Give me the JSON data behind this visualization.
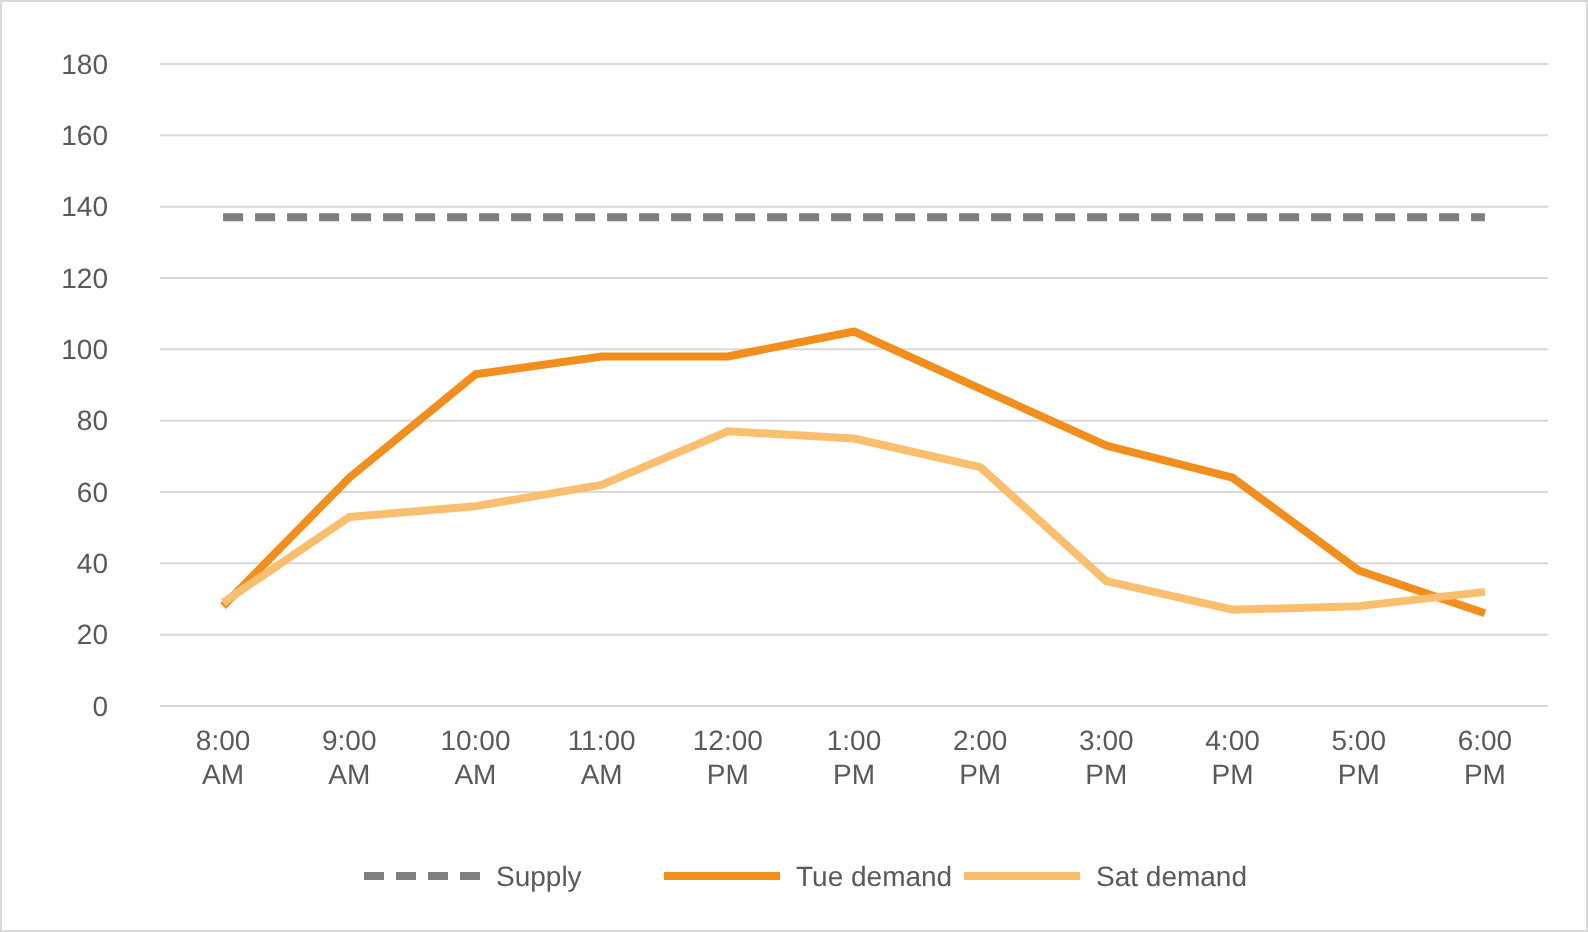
{
  "chart_data": {
    "type": "line",
    "categories": [
      "8:00 AM",
      "9:00 AM",
      "10:00 AM",
      "11:00 AM",
      "12:00 PM",
      "1:00 PM",
      "2:00 PM",
      "3:00 PM",
      "4:00 PM",
      "5:00 PM",
      "6:00 PM"
    ],
    "series": [
      {
        "name": "Supply",
        "color": "#7f7f7f",
        "line_style": "dashed",
        "values": [
          137,
          137,
          137,
          137,
          137,
          137,
          137,
          137,
          137,
          137,
          137
        ]
      },
      {
        "name": "Tue demand",
        "color": "#f28e1c",
        "line_style": "solid",
        "values": [
          28,
          64,
          93,
          98,
          98,
          105,
          89,
          73,
          64,
          38,
          26
        ]
      },
      {
        "name": "Sat demand",
        "color": "#f9bf6f",
        "line_style": "solid",
        "values": [
          29,
          53,
          56,
          62,
          77,
          75,
          67,
          35,
          27,
          28,
          32
        ]
      }
    ],
    "ylim": [
      0,
      180
    ],
    "yticks": [
      0,
      20,
      40,
      60,
      80,
      100,
      120,
      140,
      160,
      180
    ],
    "grid": "y",
    "legend": "bottom",
    "marker": "none"
  }
}
